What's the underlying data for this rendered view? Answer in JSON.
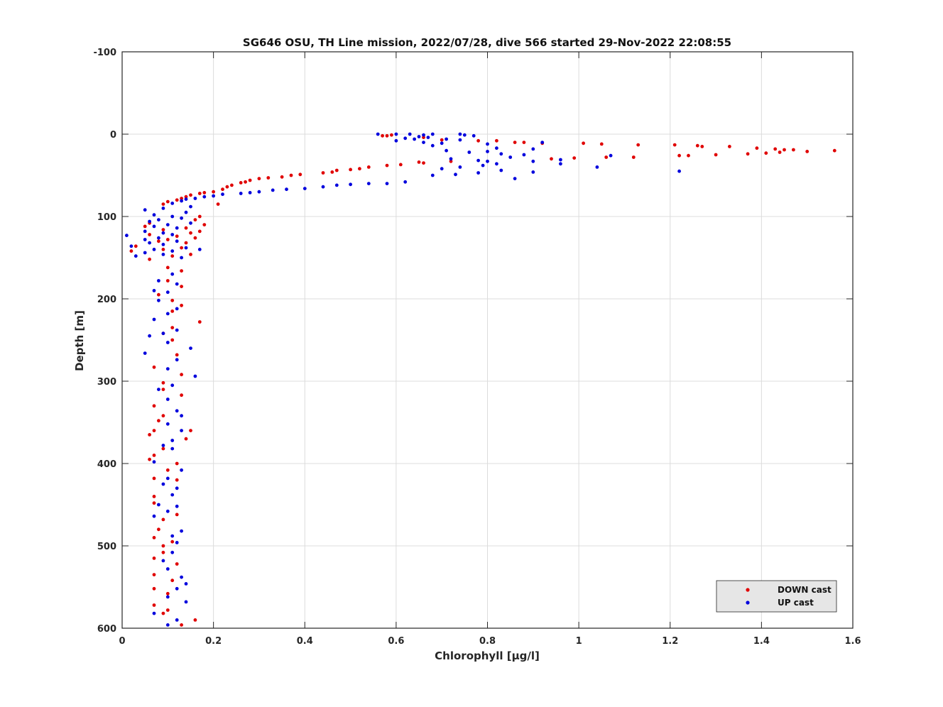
{
  "chart_data": {
    "type": "scatter",
    "title": "SG646 OSU, TH Line mission, 2022/07/28, dive 566 started 29-Nov-2022 22:08:55",
    "xlabel": "Chlorophyll [μg/l]",
    "ylabel": "Depth [m]",
    "xlim": [
      0,
      1.6
    ],
    "ylim": [
      -100,
      600
    ],
    "y_reversed": true,
    "grid": true,
    "legend_placement": "bottom-right",
    "x_ticks": [
      "0",
      "0.2",
      "0.4",
      "0.6",
      "0.8",
      "1",
      "1.2",
      "1.4",
      "1.6"
    ],
    "x_tick_values": [
      0,
      0.2,
      0.4,
      0.6,
      0.8,
      1.0,
      1.2,
      1.4,
      1.6
    ],
    "y_ticks": [
      "-100",
      "0",
      "100",
      "200",
      "300",
      "400",
      "500",
      "600"
    ],
    "y_tick_values": [
      -100,
      0,
      100,
      200,
      300,
      400,
      500,
      600
    ],
    "series": [
      {
        "name": "DOWN cast",
        "color": "#e00000",
        "points": [
          [
            0.57,
            2
          ],
          [
            0.58,
            2
          ],
          [
            0.59,
            1
          ],
          [
            0.66,
            4
          ],
          [
            0.7,
            7
          ],
          [
            0.78,
            8
          ],
          [
            0.82,
            8
          ],
          [
            0.86,
            10
          ],
          [
            0.88,
            10
          ],
          [
            0.92,
            11
          ],
          [
            1.01,
            11
          ],
          [
            1.05,
            12
          ],
          [
            1.13,
            13
          ],
          [
            1.21,
            13
          ],
          [
            1.26,
            14
          ],
          [
            1.27,
            15
          ],
          [
            1.33,
            15
          ],
          [
            1.39,
            17
          ],
          [
            1.43,
            18
          ],
          [
            1.45,
            19
          ],
          [
            1.47,
            19
          ],
          [
            1.5,
            21
          ],
          [
            1.56,
            20
          ],
          [
            1.44,
            22
          ],
          [
            1.41,
            23
          ],
          [
            1.37,
            24
          ],
          [
            1.3,
            25
          ],
          [
            1.24,
            26
          ],
          [
            1.22,
            26
          ],
          [
            1.12,
            28
          ],
          [
            1.06,
            28
          ],
          [
            0.99,
            29
          ],
          [
            0.94,
            30
          ],
          [
            0.72,
            33
          ],
          [
            0.65,
            34
          ],
          [
            0.66,
            35
          ],
          [
            0.61,
            37
          ],
          [
            0.58,
            38
          ],
          [
            0.54,
            40
          ],
          [
            0.52,
            42
          ],
          [
            0.5,
            43
          ],
          [
            0.47,
            44
          ],
          [
            0.46,
            46
          ],
          [
            0.44,
            47
          ],
          [
            0.39,
            49
          ],
          [
            0.37,
            50
          ],
          [
            0.35,
            52
          ],
          [
            0.32,
            53
          ],
          [
            0.3,
            54
          ],
          [
            0.28,
            56
          ],
          [
            0.27,
            58
          ],
          [
            0.26,
            59
          ],
          [
            0.24,
            62
          ],
          [
            0.23,
            64
          ],
          [
            0.22,
            67
          ],
          [
            0.2,
            70
          ],
          [
            0.18,
            71
          ],
          [
            0.17,
            72
          ],
          [
            0.15,
            74
          ],
          [
            0.14,
            76
          ],
          [
            0.13,
            78
          ],
          [
            0.12,
            80
          ],
          [
            0.1,
            82
          ],
          [
            0.09,
            85
          ],
          [
            0.21,
            85
          ],
          [
            0.17,
            100
          ],
          [
            0.16,
            104
          ],
          [
            0.06,
            108
          ],
          [
            0.18,
            110
          ],
          [
            0.05,
            112
          ],
          [
            0.14,
            114
          ],
          [
            0.09,
            116
          ],
          [
            0.17,
            118
          ],
          [
            0.15,
            120
          ],
          [
            0.06,
            122
          ],
          [
            0.12,
            124
          ],
          [
            0.16,
            126
          ],
          [
            0.1,
            128
          ],
          [
            0.08,
            130
          ],
          [
            0.14,
            132
          ],
          [
            0.03,
            136
          ],
          [
            0.13,
            138
          ],
          [
            0.09,
            140
          ],
          [
            0.02,
            142
          ],
          [
            0.15,
            146
          ],
          [
            0.11,
            148
          ],
          [
            0.06,
            152
          ],
          [
            0.1,
            162
          ],
          [
            0.13,
            166
          ],
          [
            0.1,
            178
          ],
          [
            0.13,
            185
          ],
          [
            0.08,
            195
          ],
          [
            0.11,
            202
          ],
          [
            0.13,
            208
          ],
          [
            0.11,
            215
          ],
          [
            0.17,
            228
          ],
          [
            0.11,
            235
          ],
          [
            0.09,
            242
          ],
          [
            0.11,
            250
          ],
          [
            0.12,
            268
          ],
          [
            0.07,
            283
          ],
          [
            0.13,
            292
          ],
          [
            0.09,
            302
          ],
          [
            0.09,
            310
          ],
          [
            0.13,
            317
          ],
          [
            0.07,
            330
          ],
          [
            0.09,
            342
          ],
          [
            0.08,
            348
          ],
          [
            0.07,
            360
          ],
          [
            0.15,
            360
          ],
          [
            0.14,
            370
          ],
          [
            0.06,
            365
          ],
          [
            0.09,
            382
          ],
          [
            0.07,
            390
          ],
          [
            0.06,
            395
          ],
          [
            0.12,
            400
          ],
          [
            0.1,
            408
          ],
          [
            0.07,
            418
          ],
          [
            0.12,
            420
          ],
          [
            0.07,
            440
          ],
          [
            0.07,
            448
          ],
          [
            0.09,
            468
          ],
          [
            0.12,
            462
          ],
          [
            0.08,
            480
          ],
          [
            0.07,
            490
          ],
          [
            0.11,
            495
          ],
          [
            0.09,
            500
          ],
          [
            0.09,
            508
          ],
          [
            0.07,
            515
          ],
          [
            0.12,
            522
          ],
          [
            0.07,
            535
          ],
          [
            0.11,
            542
          ],
          [
            0.07,
            552
          ],
          [
            0.1,
            558
          ],
          [
            0.07,
            572
          ],
          [
            0.1,
            578
          ],
          [
            0.09,
            582
          ],
          [
            0.16,
            590
          ],
          [
            0.13,
            596
          ]
        ]
      },
      {
        "name": "UP cast",
        "color": "#0000dd",
        "points": [
          [
            0.56,
            0
          ],
          [
            0.6,
            0
          ],
          [
            0.63,
            0
          ],
          [
            0.66,
            1
          ],
          [
            0.68,
            0
          ],
          [
            0.74,
            0
          ],
          [
            0.75,
            1
          ],
          [
            0.77,
            2
          ],
          [
            0.65,
            3
          ],
          [
            0.67,
            4
          ],
          [
            0.62,
            5
          ],
          [
            0.64,
            6
          ],
          [
            0.71,
            6
          ],
          [
            0.74,
            7
          ],
          [
            0.6,
            8
          ],
          [
            0.66,
            10
          ],
          [
            0.7,
            11
          ],
          [
            0.8,
            12
          ],
          [
            0.92,
            10
          ],
          [
            0.68,
            14
          ],
          [
            0.82,
            17
          ],
          [
            0.9,
            18
          ],
          [
            0.71,
            20
          ],
          [
            0.76,
            22
          ],
          [
            0.8,
            21
          ],
          [
            0.83,
            24
          ],
          [
            0.88,
            25
          ],
          [
            1.07,
            26
          ],
          [
            0.85,
            28
          ],
          [
            0.72,
            30
          ],
          [
            0.78,
            32
          ],
          [
            0.8,
            33
          ],
          [
            0.9,
            33
          ],
          [
            0.96,
            31
          ],
          [
            0.82,
            36
          ],
          [
            0.79,
            38
          ],
          [
            0.74,
            40
          ],
          [
            0.7,
            42
          ],
          [
            1.04,
            40
          ],
          [
            0.83,
            44
          ],
          [
            0.96,
            36
          ],
          [
            0.78,
            47
          ],
          [
            0.73,
            49
          ],
          [
            0.68,
            50
          ],
          [
            0.9,
            46
          ],
          [
            1.22,
            45
          ],
          [
            0.86,
            54
          ],
          [
            0.62,
            58
          ],
          [
            0.58,
            60
          ],
          [
            0.54,
            60
          ],
          [
            0.5,
            61
          ],
          [
            0.47,
            62
          ],
          [
            0.44,
            64
          ],
          [
            0.4,
            66
          ],
          [
            0.36,
            67
          ],
          [
            0.33,
            68
          ],
          [
            0.3,
            70
          ],
          [
            0.28,
            71
          ],
          [
            0.26,
            72
          ],
          [
            0.22,
            73
          ],
          [
            0.2,
            75
          ],
          [
            0.18,
            76
          ],
          [
            0.16,
            78
          ],
          [
            0.14,
            79
          ],
          [
            0.13,
            81
          ],
          [
            0.11,
            84
          ],
          [
            0.15,
            88
          ],
          [
            0.09,
            90
          ],
          [
            0.05,
            92
          ],
          [
            0.14,
            95
          ],
          [
            0.07,
            98
          ],
          [
            0.11,
            100
          ],
          [
            0.13,
            102
          ],
          [
            0.08,
            104
          ],
          [
            0.06,
            106
          ],
          [
            0.15,
            108
          ],
          [
            0.1,
            110
          ],
          [
            0.07,
            112
          ],
          [
            0.12,
            114
          ],
          [
            0.05,
            118
          ],
          [
            0.09,
            120
          ],
          [
            0.11,
            122
          ],
          [
            0.01,
            123
          ],
          [
            0.08,
            126
          ],
          [
            0.05,
            128
          ],
          [
            0.12,
            130
          ],
          [
            0.06,
            132
          ],
          [
            0.09,
            134
          ],
          [
            0.02,
            136
          ],
          [
            0.14,
            138
          ],
          [
            0.07,
            140
          ],
          [
            0.17,
            140
          ],
          [
            0.11,
            142
          ],
          [
            0.05,
            144
          ],
          [
            0.09,
            146
          ],
          [
            0.03,
            148
          ],
          [
            0.13,
            150
          ],
          [
            0.11,
            170
          ],
          [
            0.08,
            178
          ],
          [
            0.12,
            182
          ],
          [
            0.07,
            190
          ],
          [
            0.1,
            192
          ],
          [
            0.08,
            202
          ],
          [
            0.12,
            212
          ],
          [
            0.1,
            218
          ],
          [
            0.07,
            225
          ],
          [
            0.12,
            238
          ],
          [
            0.09,
            242
          ],
          [
            0.06,
            245
          ],
          [
            0.1,
            253
          ],
          [
            0.15,
            260
          ],
          [
            0.05,
            266
          ],
          [
            0.12,
            274
          ],
          [
            0.16,
            294
          ],
          [
            0.1,
            285
          ],
          [
            0.11,
            305
          ],
          [
            0.08,
            310
          ],
          [
            0.1,
            322
          ],
          [
            0.12,
            336
          ],
          [
            0.13,
            342
          ],
          [
            0.1,
            352
          ],
          [
            0.13,
            360
          ],
          [
            0.11,
            372
          ],
          [
            0.09,
            378
          ],
          [
            0.11,
            382
          ],
          [
            0.07,
            398
          ],
          [
            0.13,
            408
          ],
          [
            0.1,
            418
          ],
          [
            0.09,
            425
          ],
          [
            0.12,
            430
          ],
          [
            0.11,
            438
          ],
          [
            0.08,
            450
          ],
          [
            0.12,
            452
          ],
          [
            0.1,
            458
          ],
          [
            0.07,
            464
          ],
          [
            0.13,
            482
          ],
          [
            0.11,
            488
          ],
          [
            0.12,
            496
          ],
          [
            0.11,
            508
          ],
          [
            0.09,
            518
          ],
          [
            0.14,
            546
          ],
          [
            0.12,
            552
          ],
          [
            0.13,
            538
          ],
          [
            0.1,
            528
          ],
          [
            0.1,
            562
          ],
          [
            0.14,
            568
          ],
          [
            0.07,
            582
          ],
          [
            0.12,
            590
          ],
          [
            0.1,
            596
          ]
        ]
      }
    ]
  }
}
